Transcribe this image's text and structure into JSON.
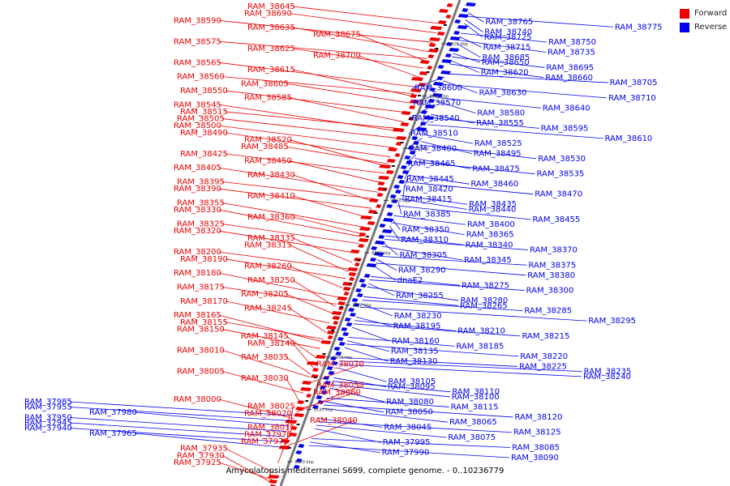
{
  "legend": [
    {
      "label": "Forward",
      "color": "#ee0000"
    },
    {
      "label": "Reverse",
      "color": "#0000ee"
    }
  ],
  "caption": "Amycolatopsis mediterranei S699, complete genome. - 0..10236779",
  "scale_ticks": [
    "8320 kbp",
    "8300 kbp",
    "8280 kbp",
    "8260 kbp",
    "8240 kbp",
    "8220 kbp",
    "8200 kbp",
    "8180 kbp",
    "8160 kbp"
  ],
  "forward_labels": [
    {
      "name": "RAM_38645",
      "c": 1
    },
    {
      "name": "RAM_38690",
      "c": 1
    },
    {
      "name": "RAM_38590",
      "c": 0
    },
    {
      "name": "RAM_38635",
      "c": 1
    },
    {
      "name": "RAM_38675",
      "c": 2
    },
    {
      "name": "RAM_38575",
      "c": 0
    },
    {
      "name": "RAM_38625",
      "c": 1
    },
    {
      "name": "RAM_38700",
      "c": 2
    },
    {
      "name": "RAM_38565",
      "c": 0
    },
    {
      "name": "RAM_38615",
      "c": 1
    },
    {
      "name": "RAM_38560",
      "c": 0
    },
    {
      "name": "RAM_38605",
      "c": 1
    },
    {
      "name": "RAM_38550",
      "c": 0
    },
    {
      "name": "RAM_38585",
      "c": 1
    },
    {
      "name": "RAM_38545",
      "c": 0
    },
    {
      "name": "RAM_38515",
      "c": 0
    },
    {
      "name": "RAM_38505",
      "c": 0
    },
    {
      "name": "RAM_38500",
      "c": 0
    },
    {
      "name": "RAM_38490",
      "c": 0
    },
    {
      "name": "RAM_38520",
      "c": 1
    },
    {
      "name": "RAM_38485",
      "c": 1
    },
    {
      "name": "RAM_38425",
      "c": 0
    },
    {
      "name": "RAM_38450",
      "c": 1
    },
    {
      "name": "RAM_38405",
      "c": 0
    },
    {
      "name": "RAM_38430",
      "c": 1
    },
    {
      "name": "RAM_38395",
      "c": 0
    },
    {
      "name": "RAM_38390",
      "c": 0
    },
    {
      "name": "RAM_38410",
      "c": 1
    },
    {
      "name": "RAM_38355",
      "c": 0
    },
    {
      "name": "RAM_38330",
      "c": 0
    },
    {
      "name": "RAM_38360",
      "c": 1
    },
    {
      "name": "RAM_38325",
      "c": 0
    },
    {
      "name": "RAM_38320",
      "c": 0
    },
    {
      "name": "RAM_38335",
      "c": 1
    },
    {
      "name": "RAM_38315",
      "c": 1
    },
    {
      "name": "RAM_38200",
      "c": 0
    },
    {
      "name": "RAM_38190",
      "c": 0
    },
    {
      "name": "RAM_38260",
      "c": 1
    },
    {
      "name": "RAM_38180",
      "c": 0
    },
    {
      "name": "RAM_38250",
      "c": 1
    },
    {
      "name": "RAM_38175",
      "c": 0
    },
    {
      "name": "RAM_38205",
      "c": 1
    },
    {
      "name": "RAM_38170",
      "c": 0
    },
    {
      "name": "RAM_38245",
      "c": 1
    },
    {
      "name": "RAM_38165",
      "c": 0
    },
    {
      "name": "RAM_38155",
      "c": 0
    },
    {
      "name": "RAM_38150",
      "c": 0
    },
    {
      "name": "RAM_38145",
      "c": 1
    },
    {
      "name": "RAM_38140",
      "c": 1
    },
    {
      "name": "RAM_38010",
      "c": 0
    },
    {
      "name": "RAM_38035",
      "c": 1
    },
    {
      "name": "RAM_38070",
      "c": 2
    },
    {
      "name": "RAM_38005",
      "c": 0
    },
    {
      "name": "RAM_38030",
      "c": 1
    },
    {
      "name": "RAM_38055",
      "c": 2
    },
    {
      "name": "RAM_38060",
      "c": 2
    },
    {
      "name": "RAM_38000",
      "c": 0
    },
    {
      "name": "RAM_38025",
      "c": 1
    },
    {
      "name": "RAM_38020",
      "c": 1
    },
    {
      "name": "RAM_38040",
      "c": 2
    },
    {
      "name": "RAM_38015",
      "c": 1
    },
    {
      "name": "RAM_37975",
      "c": 1
    },
    {
      "name": "RAM_37970",
      "c": 1
    },
    {
      "name": "RAM_37935",
      "c": 0
    },
    {
      "name": "RAM_37930",
      "c": 0
    },
    {
      "name": "RAM_37925",
      "c": 0
    }
  ],
  "reverse_labels_left": [
    {
      "name": "RAM_37985",
      "c": 0
    },
    {
      "name": "RAM_37955",
      "c": 0
    },
    {
      "name": "RAM_37980",
      "c": 1
    },
    {
      "name": "RAM_37950",
      "c": 0
    },
    {
      "name": "RAM_37945",
      "c": 0
    },
    {
      "name": "RAM_37940",
      "c": 0
    },
    {
      "name": "RAM_37965",
      "c": 1
    }
  ],
  "reverse_labels": [
    {
      "name": "RAM_38765",
      "c": 1
    },
    {
      "name": "RAM_38775",
      "c": 3
    },
    {
      "name": "RAM_38740",
      "c": 1
    },
    {
      "name": "RAM_38725",
      "c": 1
    },
    {
      "name": "RAM_38750",
      "c": 2
    },
    {
      "name": "RAM_38715",
      "c": 1
    },
    {
      "name": "RAM_38735",
      "c": 2
    },
    {
      "name": "RAM_38685",
      "c": 1
    },
    {
      "name": "RAM_38650",
      "c": 1
    },
    {
      "name": "RAM_38695",
      "c": 2
    },
    {
      "name": "RAM_38620",
      "c": 1
    },
    {
      "name": "RAM_38660",
      "c": 2
    },
    {
      "name": "RAM_38705",
      "c": 3
    },
    {
      "name": "RAM_38600",
      "c": 0
    },
    {
      "name": "RAM_38630",
      "c": 1
    },
    {
      "name": "RAM_38710",
      "c": 3
    },
    {
      "name": "RAM_38570",
      "c": 0
    },
    {
      "name": "RAM_38640",
      "c": 2
    },
    {
      "name": "RAM_38580",
      "c": 1
    },
    {
      "name": "RAM_38540",
      "c": 0
    },
    {
      "name": "RAM_38555",
      "c": 1
    },
    {
      "name": "RAM_38595",
      "c": 2
    },
    {
      "name": "RAM_38510",
      "c": 0
    },
    {
      "name": "RAM_38610",
      "c": 3
    },
    {
      "name": "RAM_38525",
      "c": 1
    },
    {
      "name": "RAM_38480",
      "c": 0
    },
    {
      "name": "RAM_38495",
      "c": 1
    },
    {
      "name": "RAM_38530",
      "c": 2
    },
    {
      "name": "RAM_38465",
      "c": 0
    },
    {
      "name": "RAM_38475",
      "c": 1
    },
    {
      "name": "RAM_38535",
      "c": 2
    },
    {
      "name": "RAM_38445",
      "c": 0
    },
    {
      "name": "RAM_38460",
      "c": 1
    },
    {
      "name": "RAM_38420",
      "c": 0
    },
    {
      "name": "RAM_38470",
      "c": 2
    },
    {
      "name": "RAM_38415",
      "c": 0
    },
    {
      "name": "RAM_38435",
      "c": 1
    },
    {
      "name": "RAM_38440",
      "c": 1
    },
    {
      "name": "RAM_38385",
      "c": 0
    },
    {
      "name": "RAM_38455",
      "c": 2
    },
    {
      "name": "RAM_38400",
      "c": 1
    },
    {
      "name": "RAM_38350",
      "c": 0
    },
    {
      "name": "RAM_38365",
      "c": 1
    },
    {
      "name": "RAM_38310",
      "c": 0
    },
    {
      "name": "RAM_38340",
      "c": 1
    },
    {
      "name": "RAM_38370",
      "c": 2
    },
    {
      "name": "RAM_38305",
      "c": 0
    },
    {
      "name": "RAM_38345",
      "c": 1
    },
    {
      "name": "RAM_38375",
      "c": 2
    },
    {
      "name": "RAM_38290",
      "c": 0
    },
    {
      "name": "RAM_38380",
      "c": 2
    },
    {
      "name": "dnaE2",
      "c": 0
    },
    {
      "name": "RAM_38275",
      "c": 1
    },
    {
      "name": "RAM_38300",
      "c": 2
    },
    {
      "name": "RAM_38255",
      "c": 0
    },
    {
      "name": "RAM_38280",
      "c": 1
    },
    {
      "name": "RAM_38265",
      "c": 1
    },
    {
      "name": "RAM_38285",
      "c": 2
    },
    {
      "name": "RAM_38230",
      "c": 0
    },
    {
      "name": "RAM_38295",
      "c": 3
    },
    {
      "name": "RAM_38195",
      "c": 0
    },
    {
      "name": "RAM_38210",
      "c": 1
    },
    {
      "name": "RAM_38215",
      "c": 2
    },
    {
      "name": "RAM_38160",
      "c": 0
    },
    {
      "name": "RAM_38185",
      "c": 1
    },
    {
      "name": "RAM_38135",
      "c": 0
    },
    {
      "name": "RAM_38220",
      "c": 2
    },
    {
      "name": "RAM_38130",
      "c": 0
    },
    {
      "name": "RAM_38225",
      "c": 2
    },
    {
      "name": "RAM_38235",
      "c": 3
    },
    {
      "name": "RAM_38240",
      "c": 3
    },
    {
      "name": "RAM_38105",
      "c": 0
    },
    {
      "name": "RAM_38095",
      "c": 0
    },
    {
      "name": "RAM_38110",
      "c": 1
    },
    {
      "name": "RAM_38100",
      "c": 1
    },
    {
      "name": "RAM_38080",
      "c": 0
    },
    {
      "name": "RAM_38115",
      "c": 1
    },
    {
      "name": "RAM_38050",
      "c": 0
    },
    {
      "name": "RAM_38120",
      "c": 2
    },
    {
      "name": "RAM_38065",
      "c": 1
    },
    {
      "name": "RAM_38045",
      "c": 0
    },
    {
      "name": "RAM_38125",
      "c": 2
    },
    {
      "name": "RAM_38075",
      "c": 1
    },
    {
      "name": "RAM_37995",
      "c": 0
    },
    {
      "name": "RAM_38085",
      "c": 2
    },
    {
      "name": "RAM_37990",
      "c": 0
    },
    {
      "name": "RAM_38090",
      "c": 2
    }
  ]
}
